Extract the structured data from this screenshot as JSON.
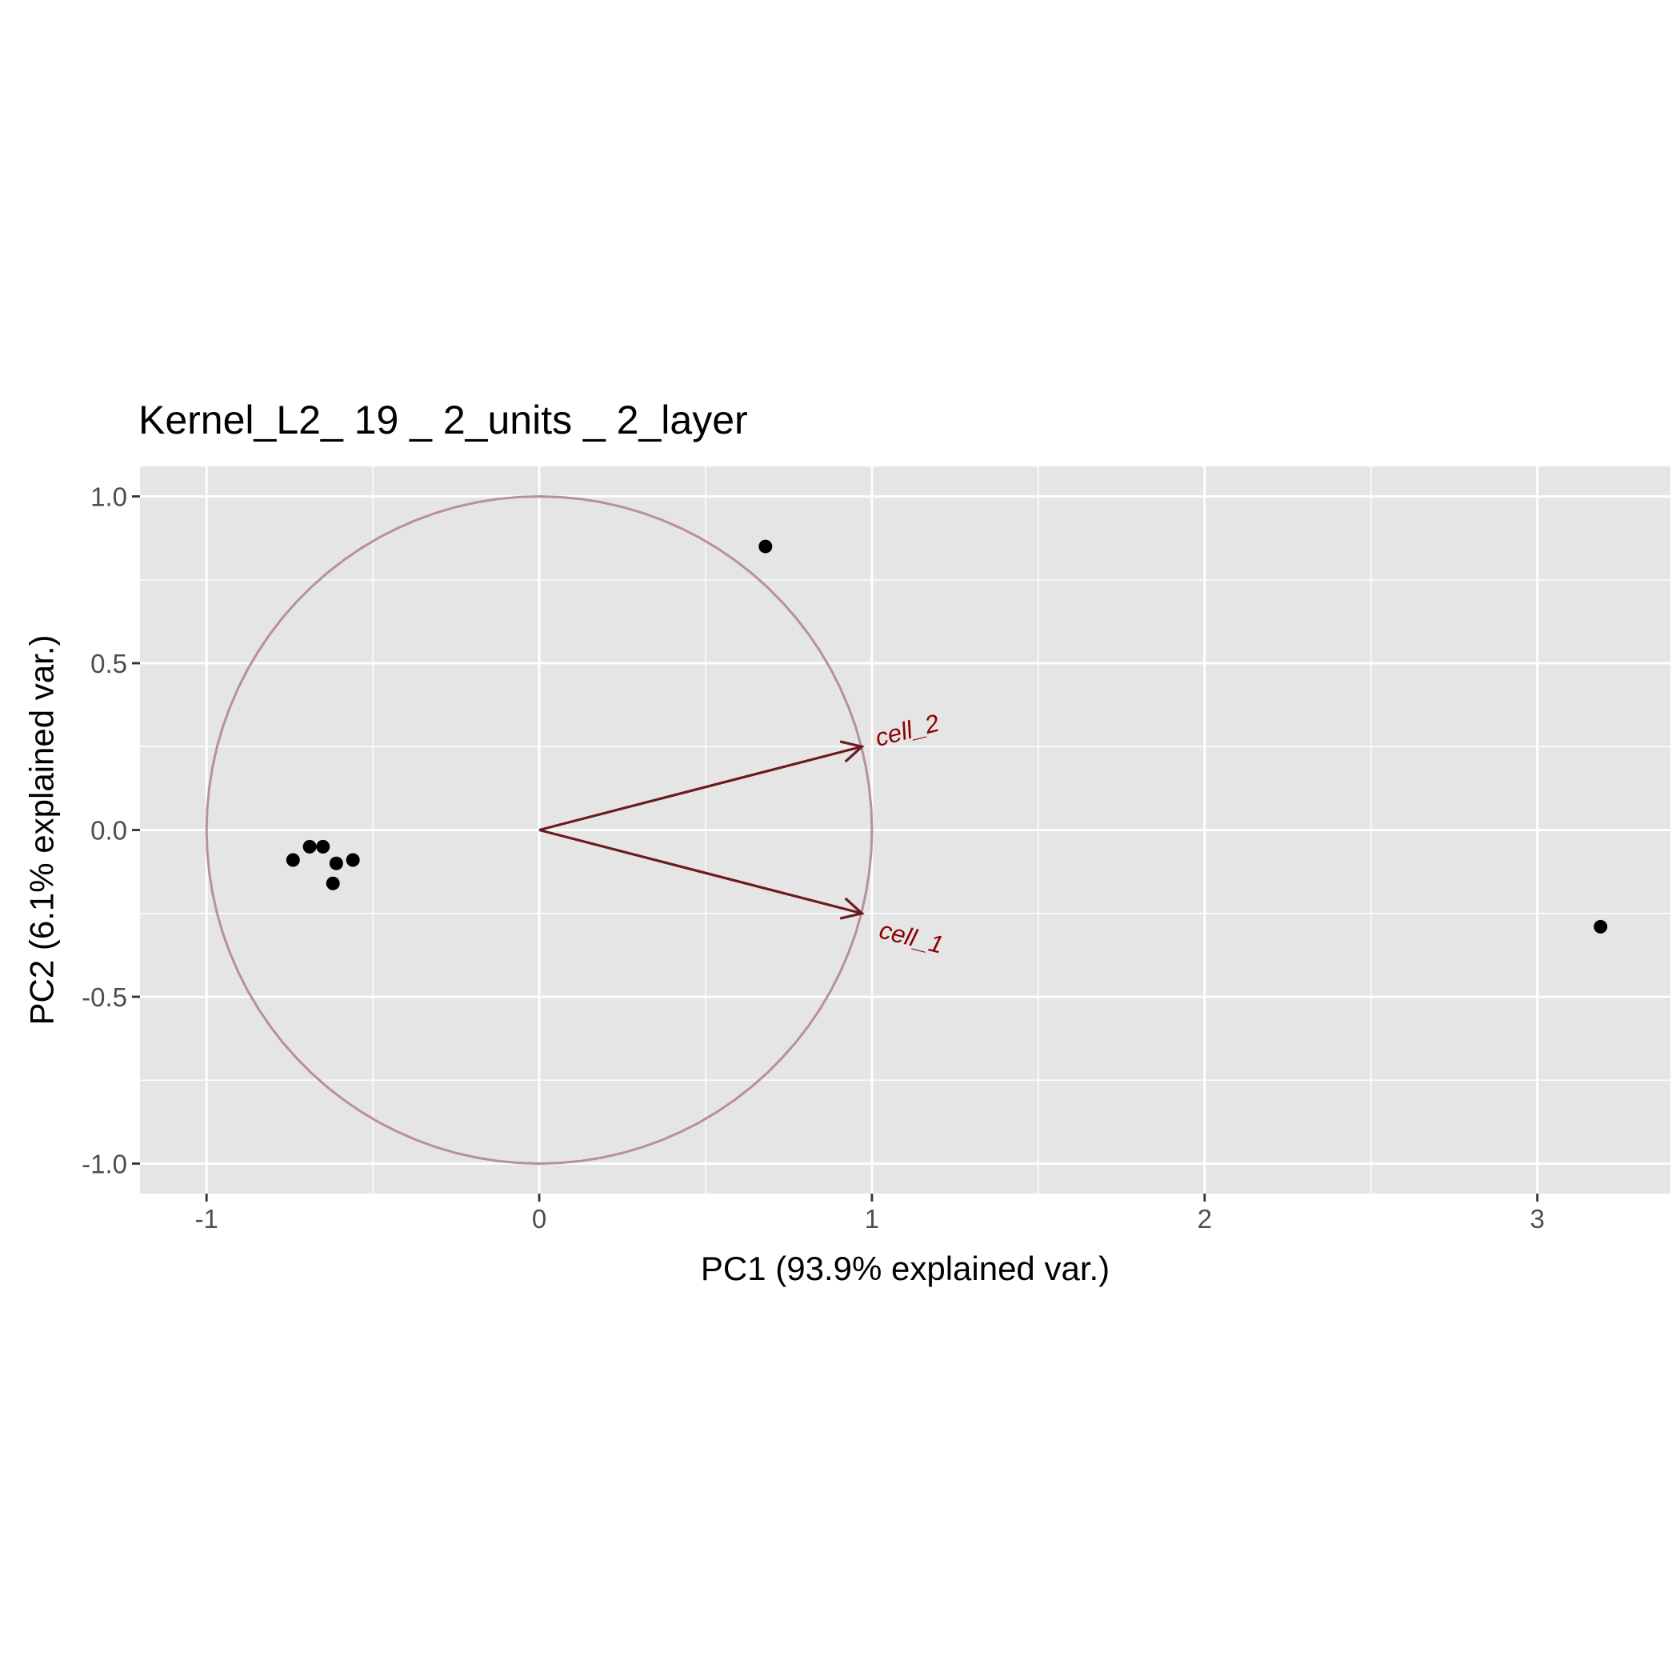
{
  "chart_data": {
    "type": "scatter",
    "title": "Kernel_L2_ 19 _ 2_units _ 2_layer",
    "xlabel": "PC1 (93.9% explained var.)",
    "ylabel": "PC2 (6.1% explained var.)",
    "xlim": [
      -1.2,
      3.4
    ],
    "ylim": [
      -1.09,
      1.09
    ],
    "x_ticks": [
      -1,
      0,
      1,
      2,
      3
    ],
    "x_tick_labels": [
      "-1",
      "0",
      "1",
      "2",
      "3"
    ],
    "y_ticks": [
      -1.0,
      -0.5,
      0.0,
      0.5,
      1.0
    ],
    "y_tick_labels": [
      "-1.0",
      "-0.5",
      "0.0",
      "0.5",
      "1.0"
    ],
    "grid": true,
    "points": [
      {
        "x": 0.68,
        "y": 0.85
      },
      {
        "x": -0.74,
        "y": -0.09
      },
      {
        "x": -0.69,
        "y": -0.05
      },
      {
        "x": -0.65,
        "y": -0.05
      },
      {
        "x": -0.61,
        "y": -0.1
      },
      {
        "x": -0.56,
        "y": -0.09
      },
      {
        "x": -0.62,
        "y": -0.16
      },
      {
        "x": 3.19,
        "y": -0.29
      }
    ],
    "loadings": [
      {
        "name": "cell_2",
        "x": 0.97,
        "y": 0.25
      },
      {
        "name": "cell_1",
        "x": 0.97,
        "y": -0.25
      }
    ],
    "unit_circle": {
      "radius": 1.0
    },
    "colors": {
      "panel": "#e5e5e5",
      "grid": "#ffffff",
      "points": "#000000",
      "arrows": "#6b1a1f",
      "arrow_labels": "#8b0000",
      "circle": "#b88f9c"
    }
  }
}
